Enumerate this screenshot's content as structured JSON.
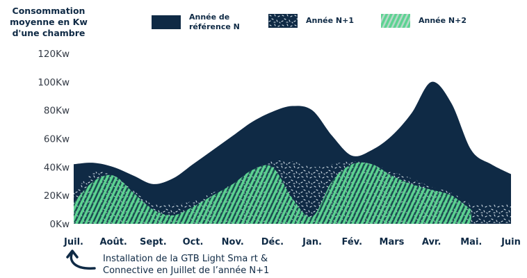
{
  "chart_data": {
    "type": "area",
    "ylabel": "Consommation moyenne en Kw d'une chambre",
    "yticks": [
      "0Kw",
      "20Kw",
      "40Kw",
      "60Kw",
      "80Kw",
      "100Kw",
      "120Kw"
    ],
    "ylim": [
      0,
      120
    ],
    "categories": [
      "Juil.",
      "Août.",
      "Sept.",
      "Oct.",
      "Nov.",
      "Déc.",
      "Jan.",
      "Fév.",
      "Mars",
      "Avr.",
      "Mai.",
      "Juin"
    ],
    "series": [
      {
        "name": "Année de référence N",
        "color": "#0f2a45",
        "points": [
          [
            0,
            42
          ],
          [
            0.5,
            43
          ],
          [
            1,
            40
          ],
          [
            1.5,
            34
          ],
          [
            2,
            28
          ],
          [
            2.5,
            32
          ],
          [
            3,
            42
          ],
          [
            3.5,
            52
          ],
          [
            4,
            62
          ],
          [
            4.5,
            72
          ],
          [
            5,
            79
          ],
          [
            5.5,
            83
          ],
          [
            6,
            80
          ],
          [
            6.5,
            62
          ],
          [
            7,
            48
          ],
          [
            7.5,
            52
          ],
          [
            8,
            62
          ],
          [
            8.5,
            78
          ],
          [
            9,
            100
          ],
          [
            9.5,
            85
          ],
          [
            10,
            52
          ],
          [
            10.5,
            42
          ],
          [
            11,
            35
          ]
        ]
      },
      {
        "name": "Année N+1",
        "color": "#0f2a45",
        "points": [
          [
            0,
            22
          ],
          [
            0.5,
            36
          ],
          [
            1,
            34
          ],
          [
            1.5,
            24
          ],
          [
            2,
            14
          ],
          [
            2.5,
            14
          ],
          [
            3,
            16
          ],
          [
            3.5,
            22
          ],
          [
            4,
            28
          ],
          [
            4.5,
            38
          ],
          [
            5,
            44
          ],
          [
            5.5,
            44
          ],
          [
            6,
            40
          ],
          [
            6.5,
            42
          ],
          [
            7,
            44
          ],
          [
            7.5,
            42
          ],
          [
            8,
            37
          ],
          [
            8.5,
            32
          ],
          [
            9,
            26
          ],
          [
            9.5,
            22
          ],
          [
            10,
            14
          ],
          [
            10.5,
            14
          ],
          [
            11,
            14
          ]
        ]
      },
      {
        "name": "Année N+2",
        "color": "#5cd391",
        "points": [
          [
            0,
            15
          ],
          [
            0.5,
            30
          ],
          [
            1,
            34
          ],
          [
            1.5,
            22
          ],
          [
            2,
            10
          ],
          [
            2.5,
            6
          ],
          [
            3,
            12
          ],
          [
            3.5,
            20
          ],
          [
            4,
            28
          ],
          [
            4.5,
            38
          ],
          [
            5,
            40
          ],
          [
            5.5,
            18
          ],
          [
            6,
            5
          ],
          [
            6.5,
            30
          ],
          [
            7,
            42
          ],
          [
            7.5,
            42
          ],
          [
            8,
            34
          ],
          [
            8.5,
            28
          ],
          [
            9,
            24
          ],
          [
            9.5,
            20
          ],
          [
            10,
            10
          ]
        ]
      }
    ],
    "legend_position": "top",
    "annotation": {
      "line1": "Installation de la GTB Light Sma rt &",
      "line2": "Connective en Juillet de l’année N+1",
      "icon": "curved-arrow-icon"
    }
  }
}
